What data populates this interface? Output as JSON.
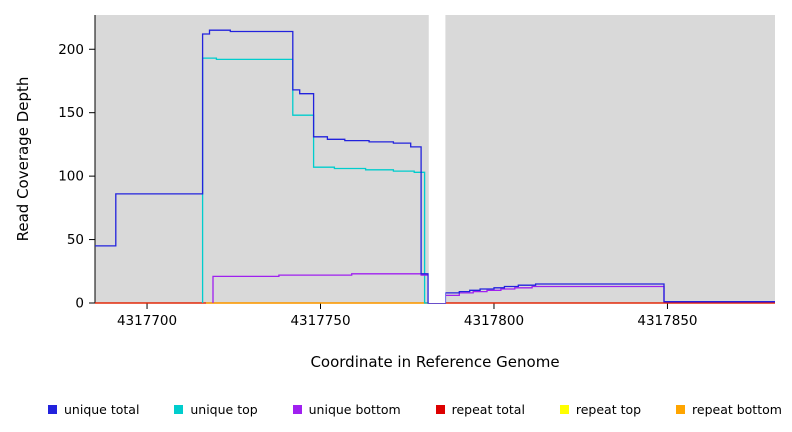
{
  "chart_data": {
    "type": "line",
    "subtype": "step-coverage-plot",
    "title": "",
    "xlabel": "Coordinate in Reference Genome",
    "ylabel": "Read Coverage Depth",
    "xlim": [
      4317685,
      4317881
    ],
    "ylim": [
      0,
      227
    ],
    "x_ticks": [
      4317700,
      4317750,
      4317800,
      4317850
    ],
    "y_ticks": [
      0,
      50,
      100,
      150,
      200
    ],
    "grid": false,
    "legend_position": "bottom",
    "panel_background": "#d9d9d9",
    "gap_band": {
      "x0": 4317781.2,
      "x1": 4317786.0,
      "color": "#ffffff"
    },
    "series": [
      {
        "name": "repeat top",
        "color": "#ffff00",
        "points": [
          [
            4317685,
            0
          ],
          [
            4317881,
            0
          ]
        ]
      },
      {
        "name": "repeat total",
        "color": "#dd0000",
        "points": [
          [
            4317685,
            0
          ],
          [
            4317881,
            0
          ]
        ]
      },
      {
        "name": "repeat bottom",
        "color": "#ffa500",
        "points": [
          [
            4317717,
            0
          ],
          [
            4317781,
            0
          ]
        ]
      },
      {
        "name": "unique top",
        "color": "#00cdcd",
        "points": [
          [
            4317716,
            0
          ],
          [
            4317716,
            193
          ],
          [
            4317720,
            193
          ],
          [
            4317720,
            192
          ],
          [
            4317742,
            192
          ],
          [
            4317742,
            148
          ],
          [
            4317748,
            148
          ],
          [
            4317748,
            107
          ],
          [
            4317754,
            107
          ],
          [
            4317754,
            106
          ],
          [
            4317763,
            106
          ],
          [
            4317763,
            105
          ],
          [
            4317771,
            105
          ],
          [
            4317771,
            104
          ],
          [
            4317777,
            104
          ],
          [
            4317777,
            103
          ],
          [
            4317780,
            103
          ],
          [
            4317780,
            0
          ],
          [
            4317781,
            0
          ]
        ]
      },
      {
        "name": "unique bottom",
        "color": "#a020f0",
        "points": [
          [
            4317719,
            0
          ],
          [
            4317719,
            21
          ],
          [
            4317738,
            21
          ],
          [
            4317738,
            22
          ],
          [
            4317759,
            22
          ],
          [
            4317759,
            23
          ],
          [
            4317779,
            23
          ],
          [
            4317779,
            22
          ],
          [
            4317781,
            22
          ],
          [
            4317781,
            0
          ],
          [
            4317786,
            0
          ],
          [
            4317786,
            6
          ],
          [
            4317790,
            6
          ],
          [
            4317790,
            8
          ],
          [
            4317794,
            8
          ],
          [
            4317794,
            9
          ],
          [
            4317798,
            9
          ],
          [
            4317798,
            10
          ],
          [
            4317802,
            10
          ],
          [
            4317802,
            11
          ],
          [
            4317806,
            11
          ],
          [
            4317806,
            12
          ],
          [
            4317811,
            12
          ],
          [
            4317811,
            13
          ],
          [
            4317849,
            13
          ],
          [
            4317849,
            1
          ],
          [
            4317881,
            1
          ]
        ]
      },
      {
        "name": "unique total",
        "color": "#2222dd",
        "points": [
          [
            4317685,
            45
          ],
          [
            4317691,
            45
          ],
          [
            4317691,
            86
          ],
          [
            4317716,
            86
          ],
          [
            4317716,
            212
          ],
          [
            4317718,
            212
          ],
          [
            4317718,
            215
          ],
          [
            4317724,
            215
          ],
          [
            4317724,
            214
          ],
          [
            4317742,
            214
          ],
          [
            4317742,
            168
          ],
          [
            4317744,
            168
          ],
          [
            4317744,
            165
          ],
          [
            4317748,
            165
          ],
          [
            4317748,
            131
          ],
          [
            4317752,
            131
          ],
          [
            4317752,
            129
          ],
          [
            4317757,
            129
          ],
          [
            4317757,
            128
          ],
          [
            4317764,
            128
          ],
          [
            4317764,
            127
          ],
          [
            4317771,
            127
          ],
          [
            4317771,
            126
          ],
          [
            4317776,
            126
          ],
          [
            4317776,
            123
          ],
          [
            4317779,
            123
          ],
          [
            4317779,
            23
          ],
          [
            4317781,
            23
          ],
          [
            4317781,
            0
          ],
          [
            4317786,
            0
          ],
          [
            4317786,
            8
          ],
          [
            4317790,
            8
          ],
          [
            4317790,
            9
          ],
          [
            4317793,
            9
          ],
          [
            4317793,
            10
          ],
          [
            4317796,
            10
          ],
          [
            4317796,
            11
          ],
          [
            4317800,
            11
          ],
          [
            4317800,
            12
          ],
          [
            4317803,
            12
          ],
          [
            4317803,
            13
          ],
          [
            4317807,
            13
          ],
          [
            4317807,
            14
          ],
          [
            4317812,
            14
          ],
          [
            4317812,
            15
          ],
          [
            4317849,
            15
          ],
          [
            4317849,
            1
          ],
          [
            4317881,
            1
          ]
        ]
      }
    ]
  },
  "legend": {
    "items": [
      {
        "label": "unique total",
        "color": "#2222dd"
      },
      {
        "label": "unique top",
        "color": "#00cdcd"
      },
      {
        "label": "unique bottom",
        "color": "#a020f0"
      },
      {
        "label": "repeat total",
        "color": "#dd0000"
      },
      {
        "label": "repeat top",
        "color": "#ffff00"
      },
      {
        "label": "repeat bottom",
        "color": "#ffa500"
      }
    ]
  }
}
